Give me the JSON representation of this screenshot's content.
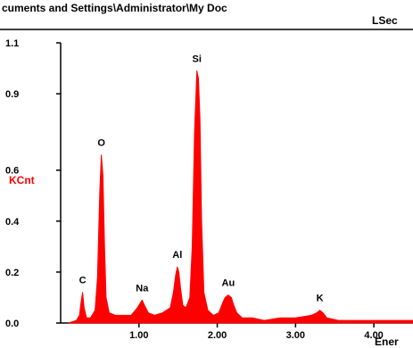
{
  "header": {
    "path_text": "cuments and Settings\\Administrator\\My Doc",
    "sub_text": "LSec"
  },
  "chart_data": {
    "type": "line",
    "title": "",
    "xlabel": "Ener",
    "ylabel": "KCnt",
    "xlim": [
      0.0,
      4.5
    ],
    "ylim": [
      0.0,
      1.1
    ],
    "x_ticks": [
      1.0,
      2.0,
      3.0,
      4.0
    ],
    "x_tick_labels": [
      "1.00",
      "2.00",
      "3.00",
      "4.00"
    ],
    "y_ticks": [
      0.0,
      0.2,
      0.4,
      0.6,
      0.9,
      1.1
    ],
    "y_tick_labels": [
      "0.0",
      "0.2",
      "0.4",
      "0.6",
      "0.9",
      "1.1"
    ],
    "grid": false,
    "colors": {
      "spectrum": "#ff0000",
      "ylabel": "#ff0000",
      "axes": "#000000"
    },
    "peaks": [
      {
        "label": "C",
        "x": 0.28,
        "y": 0.12
      },
      {
        "label": "O",
        "x": 0.52,
        "y": 0.66
      },
      {
        "label": "Na",
        "x": 1.04,
        "y": 0.09
      },
      {
        "label": "Al",
        "x": 1.49,
        "y": 0.22
      },
      {
        "label": "Si",
        "x": 1.74,
        "y": 0.99
      },
      {
        "label": "Au",
        "x": 2.14,
        "y": 0.11
      },
      {
        "label": "K",
        "x": 3.31,
        "y": 0.05
      }
    ],
    "series": [
      {
        "x": [
          0.1,
          0.2,
          0.24,
          0.26,
          0.28,
          0.3,
          0.33,
          0.38,
          0.44,
          0.47,
          0.5,
          0.52,
          0.54,
          0.56,
          0.58,
          0.62,
          0.7,
          0.8,
          0.9,
          0.98,
          1.02,
          1.04,
          1.07,
          1.12,
          1.2,
          1.3,
          1.4,
          1.44,
          1.47,
          1.49,
          1.51,
          1.53,
          1.56,
          1.6,
          1.65,
          1.68,
          1.71,
          1.74,
          1.76,
          1.78,
          1.8,
          1.83,
          1.88,
          1.95,
          2.02,
          2.07,
          2.1,
          2.14,
          2.18,
          2.21,
          2.25,
          2.32,
          2.45,
          2.6,
          2.8,
          3.0,
          3.2,
          3.27,
          3.31,
          3.35,
          3.4,
          3.55,
          3.8,
          4.1,
          4.5
        ],
        "y": [
          0.0,
          0.01,
          0.03,
          0.08,
          0.12,
          0.06,
          0.02,
          0.02,
          0.05,
          0.18,
          0.52,
          0.66,
          0.58,
          0.3,
          0.1,
          0.04,
          0.03,
          0.03,
          0.03,
          0.06,
          0.08,
          0.09,
          0.07,
          0.04,
          0.03,
          0.04,
          0.06,
          0.12,
          0.19,
          0.22,
          0.2,
          0.14,
          0.07,
          0.06,
          0.1,
          0.3,
          0.75,
          0.99,
          0.96,
          0.8,
          0.4,
          0.12,
          0.05,
          0.03,
          0.04,
          0.08,
          0.1,
          0.11,
          0.1,
          0.07,
          0.04,
          0.02,
          0.02,
          0.01,
          0.02,
          0.02,
          0.03,
          0.04,
          0.05,
          0.04,
          0.02,
          0.01,
          0.01,
          0.01,
          0.01
        ]
      }
    ]
  }
}
